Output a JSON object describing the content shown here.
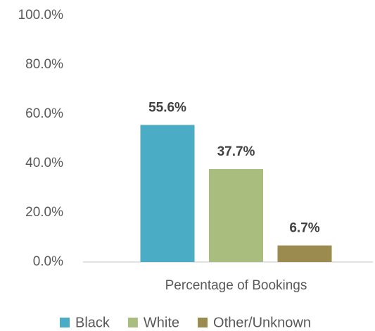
{
  "chart_data": {
    "type": "bar",
    "categories": [
      "Percentage of Bookings"
    ],
    "series": [
      {
        "name": "Black",
        "color": "#4bacc6",
        "values": [
          55.6
        ],
        "value_labels": [
          "55.6%"
        ]
      },
      {
        "name": "White",
        "color": "#a9bd7e",
        "values": [
          37.7
        ],
        "value_labels": [
          "37.7%"
        ]
      },
      {
        "name": "Other/Unknown",
        "color": "#9b8b4e",
        "values": [
          6.7
        ],
        "value_labels": [
          "6.7%"
        ]
      }
    ],
    "ylim": [
      0,
      100
    ],
    "yticks": [
      {
        "value": 0,
        "label": "0.0%"
      },
      {
        "value": 20,
        "label": "20.0%"
      },
      {
        "value": 40,
        "label": "40.0%"
      },
      {
        "value": 60,
        "label": "60.0%"
      },
      {
        "value": 80,
        "label": "80.0%"
      },
      {
        "value": 100,
        "label": "100.0%"
      }
    ],
    "grid": false,
    "legend": "bottom"
  }
}
